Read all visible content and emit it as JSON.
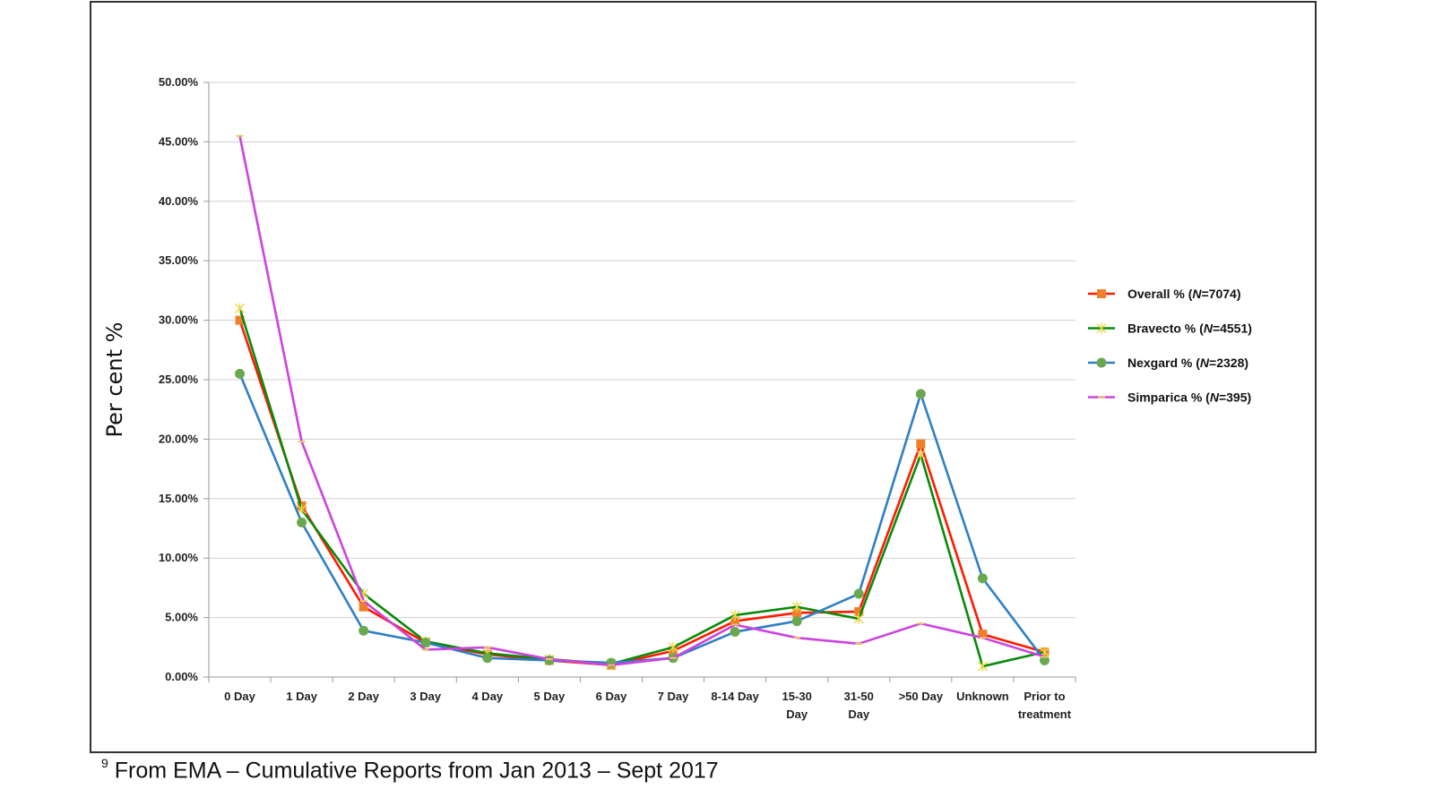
{
  "footnote": {
    "marker": "9",
    "text": "From EMA – Cumulative Reports from Jan 2013 – Sept 2017"
  },
  "chart_data": {
    "type": "line",
    "title": "",
    "xlabel": "",
    "ylabel": "Per cent %",
    "ylim": [
      0,
      50
    ],
    "y_ticks": [
      "0.00%",
      "5.00%",
      "10.00%",
      "15.00%",
      "20.00%",
      "25.00%",
      "30.00%",
      "35.00%",
      "40.00%",
      "45.00%",
      "50.00%"
    ],
    "grid": "horizontal",
    "legend_position": "right",
    "categories": [
      [
        "0 Day"
      ],
      [
        "1 Day"
      ],
      [
        "2 Day"
      ],
      [
        "3 Day"
      ],
      [
        "4 Day"
      ],
      [
        "5 Day"
      ],
      [
        "6 Day"
      ],
      [
        "7 Day"
      ],
      [
        "8-14 Day"
      ],
      [
        "15-30",
        "Day"
      ],
      [
        "31-50",
        "Day"
      ],
      [
        ">50 Day"
      ],
      [
        "Unknown"
      ],
      [
        "Prior to",
        "treatment"
      ]
    ],
    "series": [
      {
        "name": "Overall % (",
        "name_italic": "N",
        "name_suffix": "=7074)",
        "color": "#ff1a00",
        "marker": "square",
        "marker_color": "#f07f2a",
        "values": [
          30.0,
          14.4,
          5.9,
          2.9,
          1.9,
          1.4,
          1.0,
          2.2,
          4.7,
          5.4,
          5.5,
          19.6,
          3.6,
          2.1
        ]
      },
      {
        "name": "Bravecto % (",
        "name_italic": "N",
        "name_suffix": "=4551)",
        "color": "#0a8a0a",
        "marker": "star",
        "marker_color": "#e8d84a",
        "values": [
          31.0,
          14.1,
          7.0,
          3.0,
          2.0,
          1.5,
          1.1,
          2.5,
          5.2,
          5.9,
          4.9,
          18.7,
          0.9,
          2.1
        ]
      },
      {
        "name": "Nexgard % (",
        "name_italic": "N",
        "name_suffix": "=2328)",
        "color": "#2f7fc6",
        "marker": "circle",
        "marker_color": "#6aa84f",
        "values": [
          25.5,
          13.0,
          3.9,
          2.9,
          1.6,
          1.4,
          1.2,
          1.6,
          3.8,
          4.7,
          7.0,
          23.8,
          8.3,
          1.4
        ]
      },
      {
        "name": "Simparica % (",
        "name_italic": "N",
        "name_suffix": "=395)",
        "color": "#cc44dd",
        "marker": "dash",
        "marker_color": "#e8c86a",
        "values": [
          45.5,
          19.8,
          6.4,
          2.3,
          2.5,
          1.5,
          1.0,
          1.6,
          4.4,
          3.3,
          2.8,
          4.5,
          3.3,
          1.7
        ]
      }
    ]
  }
}
